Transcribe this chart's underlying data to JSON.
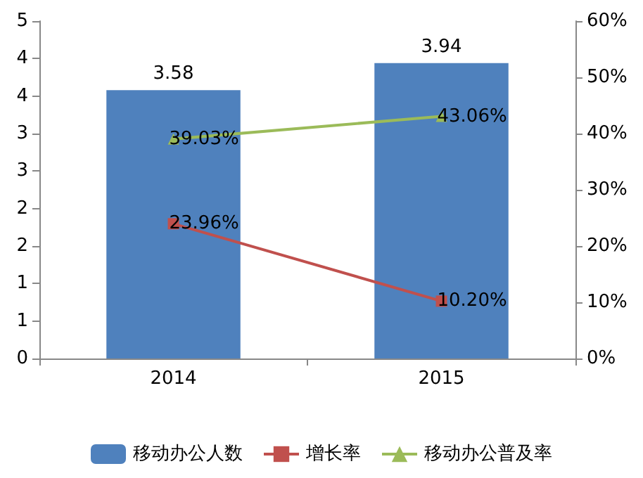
{
  "chart_data": {
    "type": "bar",
    "categories": [
      "2014",
      "2015"
    ],
    "series": [
      {
        "name": "移动办公人数",
        "color": "#4f81bd",
        "values": [
          3.58,
          3.94
        ],
        "value_labels": [
          "3.58",
          "3.94"
        ]
      },
      {
        "name": "增长率",
        "type": "line",
        "axis": "y2",
        "color": "#c0504d",
        "marker": "square",
        "values": [
          23.96,
          10.2
        ],
        "value_labels": [
          "23.96%",
          "10.20%"
        ]
      },
      {
        "name": "移动办公普及率",
        "type": "line",
        "axis": "y2",
        "color": "#9bbb59",
        "marker": "triangle",
        "values": [
          39.03,
          43.06
        ],
        "value_labels": [
          "39.03%",
          "43.06%"
        ]
      }
    ],
    "ylim": [
      0,
      4.5
    ],
    "yticks": [
      {
        "value": 0,
        "label": "0"
      },
      {
        "value": 0.5,
        "label": "1"
      },
      {
        "value": 1,
        "label": "1"
      },
      {
        "value": 1.5,
        "label": "2"
      },
      {
        "value": 2,
        "label": "2"
      },
      {
        "value": 2.5,
        "label": "3"
      },
      {
        "value": 3,
        "label": "3"
      },
      {
        "value": 3.5,
        "label": "4"
      },
      {
        "value": 4,
        "label": "4"
      },
      {
        "value": 4.5,
        "label": "5"
      }
    ],
    "y2lim": [
      0,
      60
    ],
    "y2ticks": [
      {
        "value": 0,
        "label": "0%"
      },
      {
        "value": 10,
        "label": "10%"
      },
      {
        "value": 20,
        "label": "20%"
      },
      {
        "value": 30,
        "label": "30%"
      },
      {
        "value": 40,
        "label": "40%"
      },
      {
        "value": 50,
        "label": "50%"
      },
      {
        "value": 60,
        "label": "60%"
      }
    ],
    "grid": false,
    "legend": "bottom"
  }
}
